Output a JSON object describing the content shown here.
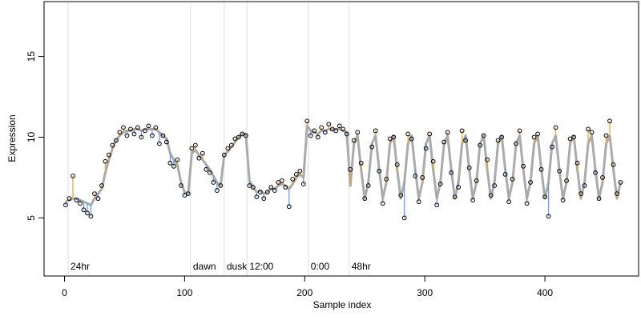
{
  "chart_data": {
    "type": "scatter",
    "xlabel": "Sample index",
    "ylabel": "Expression",
    "xlim": [
      -17,
      478
    ],
    "ylim": [
      1.4,
      18.4
    ],
    "xticks": [
      0,
      100,
      200,
      300,
      400
    ],
    "yticks": [
      5,
      10,
      15
    ],
    "point_color": "#000000",
    "fitted_color": "#aaaaaa",
    "positive_color": "#f0a030",
    "negative_color": "#6495ed",
    "annotation_color": "#aaaaaa",
    "annotations": [
      {
        "x": 3,
        "label": "24hr"
      },
      {
        "x": 105,
        "label": "dawn"
      },
      {
        "x": 133,
        "label": "dusk"
      },
      {
        "x": 152,
        "label": "12:00"
      },
      {
        "x": 203,
        "label": "0:00"
      },
      {
        "x": 237,
        "label": "48hr"
      }
    ],
    "x": [
      1,
      4,
      7,
      10,
      13,
      16,
      19,
      22,
      25,
      28,
      31,
      34,
      37,
      40,
      43,
      46,
      49,
      52,
      55,
      58,
      61,
      64,
      67,
      70,
      73,
      76,
      79,
      82,
      85,
      88,
      91,
      94,
      97,
      100,
      103,
      106,
      109,
      112,
      115,
      118,
      121,
      124,
      127,
      130,
      133,
      136,
      139,
      142,
      145,
      148,
      151,
      154,
      157,
      160,
      163,
      166,
      169,
      172,
      175,
      178,
      181,
      184,
      187,
      190,
      193,
      196,
      199,
      202,
      205,
      208,
      211,
      214,
      217,
      220,
      223,
      226,
      229,
      232,
      235,
      238,
      241,
      244,
      247,
      250,
      253,
      256,
      259,
      262,
      265,
      268,
      271,
      274,
      277,
      280,
      283,
      286,
      289,
      292,
      295,
      298,
      301,
      304,
      307,
      310,
      313,
      316,
      319,
      322,
      325,
      328,
      331,
      334,
      337,
      340,
      343,
      346,
      349,
      352,
      355,
      358,
      361,
      364,
      367,
      370,
      373,
      376,
      379,
      382,
      385,
      388,
      391,
      394,
      397,
      400,
      403,
      406,
      409,
      412,
      415,
      418,
      421,
      424,
      427,
      430,
      433,
      436,
      439,
      442,
      445,
      448,
      451,
      454,
      457,
      460,
      463
    ],
    "values": [
      5.8,
      6.2,
      7.6,
      6.1,
      5.9,
      5.5,
      5.3,
      5.1,
      6.5,
      6.2,
      7.0,
      8.5,
      8.9,
      9.5,
      9.8,
      10.3,
      10.6,
      10.1,
      10.5,
      10.2,
      10.6,
      10.0,
      10.4,
      10.7,
      10.1,
      10.6,
      9.6,
      10.1,
      9.7,
      8.4,
      8.2,
      8.6,
      7.0,
      6.4,
      6.5,
      9.3,
      9.5,
      8.7,
      9.0,
      8.0,
      7.8,
      7.2,
      6.7,
      7.0,
      8.9,
      9.3,
      9.5,
      9.9,
      10.0,
      10.2,
      10.1,
      7.0,
      6.9,
      6.3,
      6.6,
      6.2,
      6.6,
      6.9,
      6.7,
      7.2,
      7.3,
      6.9,
      5.7,
      7.4,
      7.7,
      7.9,
      7.1,
      11.0,
      10.1,
      10.4,
      10.0,
      10.6,
      10.3,
      10.8,
      10.5,
      10.4,
      10.7,
      10.5,
      10.2,
      8.0,
      9.8,
      10.3,
      8.4,
      6.2,
      7.0,
      9.4,
      10.4,
      7.9,
      5.9,
      7.4,
      9.9,
      10.0,
      8.3,
      6.4,
      5.0,
      10.2,
      9.9,
      7.6,
      6.0,
      7.5,
      9.3,
      10.2,
      8.5,
      5.8,
      7.1,
      9.7,
      10.3,
      7.8,
      6.3,
      6.9,
      10.4,
      9.8,
      8.1,
      6.1,
      7.3,
      9.5,
      10.1,
      8.6,
      6.4,
      7.0,
      9.8,
      10.0,
      7.7,
      6.0,
      7.4,
      9.6,
      10.4,
      8.2,
      5.9,
      7.2,
      10.0,
      10.2,
      8.0,
      6.3,
      5.1,
      9.4,
      10.6,
      7.9,
      6.1,
      7.3,
      9.9,
      10.0,
      8.4,
      6.5,
      7.0,
      10.5,
      10.3,
      7.8,
      6.2,
      7.5,
      10.1,
      11.0,
      8.3,
      6.5,
      7.2
    ],
    "fitted": [
      6.0,
      6.1,
      6.2,
      6.2,
      6.1,
      6.0,
      5.9,
      5.8,
      6.2,
      6.5,
      6.8,
      7.8,
      8.6,
      9.3,
      9.8,
      10.1,
      10.3,
      10.4,
      10.4,
      10.5,
      10.5,
      10.4,
      10.5,
      10.5,
      10.5,
      10.5,
      10.3,
      10.1,
      9.9,
      9.0,
      8.6,
      8.3,
      7.2,
      6.6,
      6.5,
      9.0,
      9.2,
      8.9,
      8.6,
      8.3,
      8.0,
      7.6,
      7.2,
      7.0,
      8.9,
      9.1,
      9.4,
      9.7,
      10.0,
      10.2,
      10.2,
      7.3,
      6.9,
      6.6,
      6.7,
      6.5,
      6.6,
      6.8,
      6.8,
      7.0,
      7.1,
      7.0,
      6.8,
      7.1,
      7.5,
      7.7,
      7.5,
      10.7,
      10.4,
      10.3,
      10.2,
      10.4,
      10.4,
      10.5,
      10.5,
      10.5,
      10.5,
      10.4,
      10.3,
      7.0,
      9.6,
      10.1,
      8.0,
      6.2,
      7.2,
      9.6,
      10.1,
      8.0,
      6.2,
      7.2,
      9.6,
      10.1,
      8.0,
      6.2,
      7.2,
      9.6,
      10.1,
      8.0,
      6.2,
      7.2,
      9.6,
      10.1,
      8.0,
      6.2,
      7.2,
      9.6,
      10.1,
      8.0,
      6.2,
      7.2,
      9.6,
      10.1,
      8.0,
      6.2,
      7.2,
      9.6,
      10.1,
      8.0,
      6.2,
      7.2,
      9.6,
      10.1,
      8.0,
      6.2,
      7.2,
      9.6,
      10.1,
      8.0,
      6.2,
      7.2,
      9.6,
      10.1,
      8.0,
      6.2,
      7.2,
      9.6,
      10.1,
      8.0,
      6.2,
      7.2,
      9.6,
      10.1,
      8.0,
      6.2,
      7.2,
      9.6,
      10.1,
      8.0,
      6.2,
      7.2,
      9.6,
      10.1,
      8.0,
      6.2,
      7.2
    ]
  }
}
